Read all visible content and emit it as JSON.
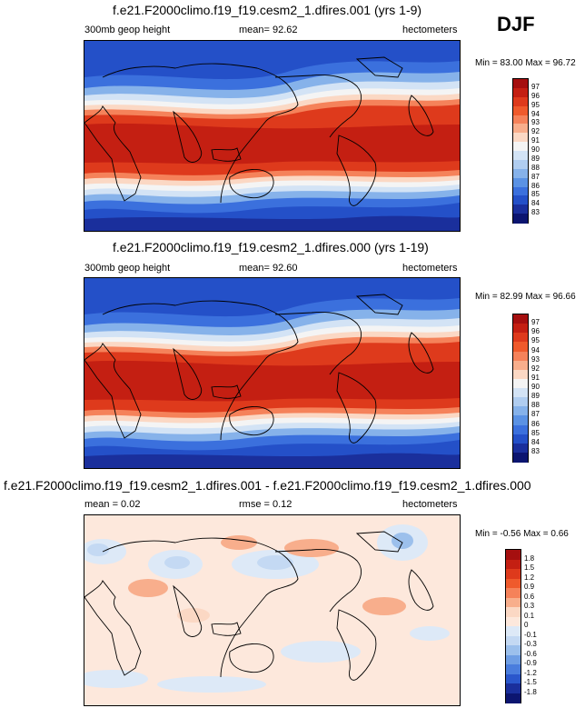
{
  "season": "DJF",
  "panels": [
    {
      "title": "f.e21.F2000climo.f19_f19.cesm2_1.dfires.001 (yrs 1-9)",
      "left_label": "300mb geop height",
      "center_label": "mean=  92.62",
      "right_label": "hectometers",
      "minmax": "Min = 83.00 Max =  96.72",
      "colorbar": {
        "labels": [
          "97",
          "96",
          "95",
          "94",
          "93",
          "92",
          "91",
          "90",
          "89",
          "88",
          "87",
          "86",
          "85",
          "84",
          "83"
        ],
        "colors": [
          "#a50f0f",
          "#c41f12",
          "#de3a1c",
          "#ef5a2c",
          "#f5825a",
          "#f8ae8c",
          "#fbd8c4",
          "#f4f4f4",
          "#d3e3f5",
          "#b0cdf0",
          "#86b2ea",
          "#5b92e4",
          "#3b70dd",
          "#2450c8",
          "#1a2f9c",
          "#0c1570"
        ]
      },
      "chart_data": {
        "type": "heatmap",
        "field": "300mb geopotential height",
        "units": "hectometers",
        "mean": 92.62,
        "min": 83.0,
        "max": 96.72,
        "levels": [
          83,
          84,
          85,
          86,
          87,
          88,
          89,
          90,
          91,
          92,
          93,
          94,
          95,
          96,
          97
        ]
      }
    },
    {
      "title": "f.e21.F2000climo.f19_f19.cesm2_1.dfires.000 (yrs 1-19)",
      "left_label": "300mb geop height",
      "center_label": "mean=  92.60",
      "right_label": "hectometers",
      "minmax": "Min = 82.99 Max =  96.66",
      "colorbar": {
        "labels": [
          "97",
          "96",
          "95",
          "94",
          "93",
          "92",
          "91",
          "90",
          "89",
          "88",
          "87",
          "86",
          "85",
          "84",
          "83"
        ],
        "colors": [
          "#a50f0f",
          "#c41f12",
          "#de3a1c",
          "#ef5a2c",
          "#f5825a",
          "#f8ae8c",
          "#fbd8c4",
          "#f4f4f4",
          "#d3e3f5",
          "#b0cdf0",
          "#86b2ea",
          "#5b92e4",
          "#3b70dd",
          "#2450c8",
          "#1a2f9c",
          "#0c1570"
        ]
      },
      "chart_data": {
        "type": "heatmap",
        "field": "300mb geopotential height",
        "units": "hectometers",
        "mean": 92.6,
        "min": 82.99,
        "max": 96.66,
        "levels": [
          83,
          84,
          85,
          86,
          87,
          88,
          89,
          90,
          91,
          92,
          93,
          94,
          95,
          96,
          97
        ]
      }
    },
    {
      "title": "f.e21.F2000climo.f19_f19.cesm2_1.dfires.001 - f.e21.F2000climo.f19_f19.cesm2_1.dfires.000",
      "left_label": "mean =  0.02",
      "center_label": "rmse =  0.12",
      "right_label": "hectometers",
      "minmax": "Min = -0.56 Max =  0.66",
      "colorbar": {
        "labels": [
          "1.8",
          "1.5",
          "1.2",
          "0.9",
          "0.6",
          "0.3",
          "0.1",
          "0",
          "-0.1",
          "-0.3",
          "-0.6",
          "-0.9",
          "-1.2",
          "-1.5",
          "-1.8"
        ],
        "colors": [
          "#a50f0f",
          "#c41f12",
          "#de3a1c",
          "#ef5a2c",
          "#f5825a",
          "#f8ae8c",
          "#fbd8c4",
          "#fde8dc",
          "#dde9f7",
          "#c4d9f3",
          "#9cc0ec",
          "#6f9ee4",
          "#4a7ddd",
          "#2a57cc",
          "#1a2f9c",
          "#0c1570"
        ]
      },
      "chart_data": {
        "type": "heatmap",
        "field": "difference",
        "units": "hectometers",
        "mean": 0.02,
        "rmse": 0.12,
        "min": -0.56,
        "max": 0.66,
        "levels": [
          -1.8,
          -1.5,
          -1.2,
          -0.9,
          -0.6,
          -0.3,
          -0.1,
          0,
          0.1,
          0.3,
          0.6,
          0.9,
          1.2,
          1.5,
          1.8
        ]
      }
    }
  ]
}
